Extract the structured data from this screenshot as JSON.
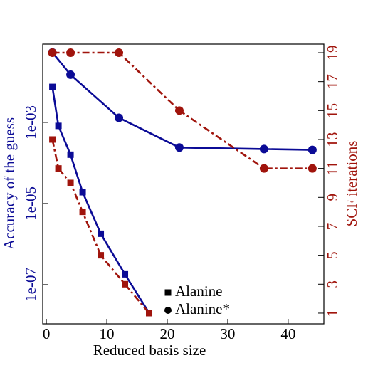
{
  "chart_data": {
    "type": "line",
    "xlabel": "Reduced basis size",
    "ylabel": "Accuracy of the guess",
    "y2label": "SCF iterations",
    "ylabel_color": "#0b0b96",
    "y2label_color": "#a0140c",
    "xlim": [
      -0.6,
      45.9
    ],
    "xticks": [
      0,
      10,
      20,
      30,
      40
    ],
    "ylim": [
      1.08e-08,
      0.085
    ],
    "ylog": true,
    "yticks": [
      {
        "value": 0.001,
        "label": "1e-03"
      },
      {
        "value": 1e-05,
        "label": "1e-05"
      },
      {
        "value": 1e-07,
        "label": "1e-07"
      }
    ],
    "y2lim": [
      0.26,
      19.59
    ],
    "y2ticks": [
      1,
      3,
      5,
      7,
      9,
      11,
      13,
      15,
      17,
      19
    ],
    "series": [
      {
        "marker": "square",
        "color": "#0b0b96",
        "linestyle": "solid",
        "axis": "y",
        "x": [
          1,
          2,
          4,
          6,
          9,
          13,
          17
        ],
        "values": [
          0.0075,
          0.00082,
          0.00016,
          1.9e-05,
          1.8e-06,
          1.8e-07,
          2e-08
        ]
      },
      {
        "marker": "circle",
        "color": "#0b0b96",
        "linestyle": "solid",
        "axis": "y",
        "x": [
          1,
          4,
          12,
          22,
          36,
          44
        ],
        "values": [
          0.053,
          0.015,
          0.0013,
          0.00024,
          0.00022,
          0.00021
        ]
      },
      {
        "marker": "square",
        "color": "#a0140c",
        "linestyle": "dashdot",
        "axis": "y2",
        "x": [
          1,
          2,
          4,
          6,
          9,
          13,
          17
        ],
        "values": [
          13,
          11,
          10,
          8,
          5,
          3,
          1
        ]
      },
      {
        "marker": "circle",
        "color": "#a0140c",
        "linestyle": "dashdot",
        "axis": "y2",
        "x": [
          1,
          4,
          12,
          22,
          36,
          44
        ],
        "values": [
          19,
          19,
          19,
          15,
          11,
          11
        ]
      }
    ],
    "legend": [
      {
        "label": "Alanine",
        "marker": "square"
      },
      {
        "label": "Alanine*",
        "marker": "circle"
      }
    ]
  }
}
